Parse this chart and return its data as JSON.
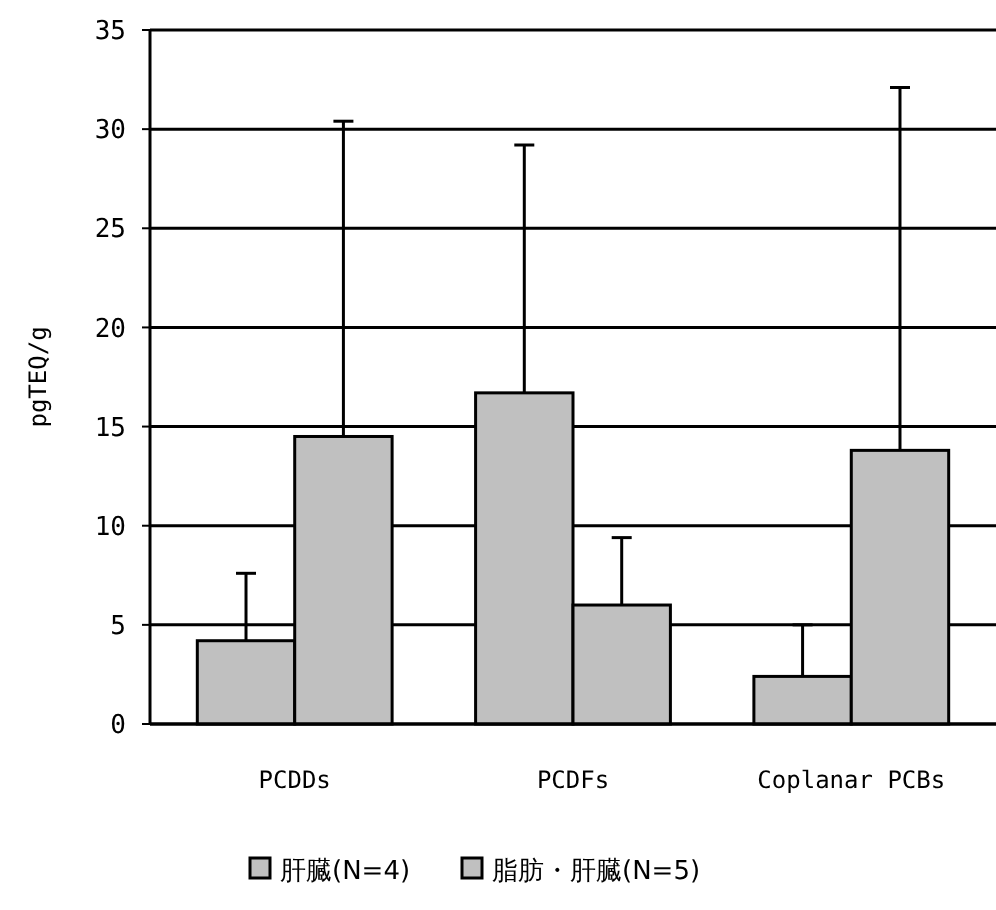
{
  "chart_data": {
    "type": "bar",
    "ylabel": "pgTEQ/g",
    "categories": [
      "PCDDs",
      "PCDFs",
      "Coplanar PCBs"
    ],
    "series": [
      {
        "name": "肝臓(N=4)",
        "color": "#c0c0c0",
        "values": [
          4.2,
          16.7,
          2.4
        ],
        "errors": [
          [
            4.2,
            7.6
          ],
          [
            16.7,
            29.2
          ],
          [
            2.4,
            5.0
          ]
        ]
      },
      {
        "name": "脂肪・肝臓(N=5)",
        "color": "#c0c0c0",
        "values": [
          14.5,
          6.0,
          13.8
        ],
        "errors": [
          [
            14.5,
            30.4
          ],
          [
            6.0,
            9.4
          ],
          [
            13.8,
            32.1
          ]
        ]
      }
    ],
    "ylim": [
      0,
      35
    ],
    "yticks": [
      0,
      5,
      10,
      15,
      20,
      25,
      30,
      35
    ],
    "grid": "y",
    "legend": "bottom"
  }
}
